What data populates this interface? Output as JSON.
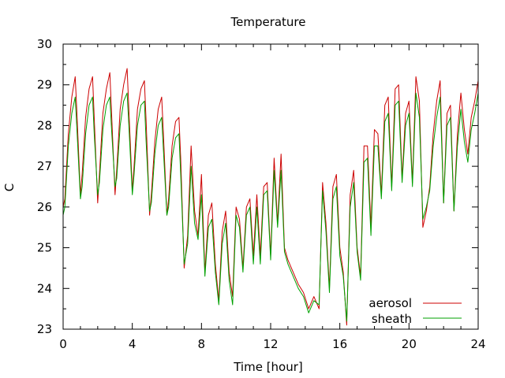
{
  "chart_data": {
    "type": "line",
    "title": "Temperature",
    "xlabel": "Time [hour]",
    "ylabel": "C",
    "xlim": [
      0,
      24
    ],
    "ylim": [
      23,
      30
    ],
    "xticks": [
      0,
      4,
      8,
      12,
      16,
      20,
      24
    ],
    "yticks": [
      23,
      24,
      25,
      26,
      27,
      28,
      29,
      30
    ],
    "xtick_labels": [
      "0",
      "4",
      "8",
      "12",
      "16",
      "20",
      "24"
    ],
    "ytick_labels": [
      "23",
      "24",
      "25",
      "26",
      "27",
      "28",
      "29",
      "30"
    ],
    "grid": false,
    "legend_position": "bottom-right",
    "series": [
      {
        "name": "aerosol",
        "color": "#cc0000",
        "x": [
          0,
          0.1,
          0.3,
          0.5,
          0.7,
          0.8,
          1.0,
          1.1,
          1.3,
          1.5,
          1.7,
          1.8,
          2.0,
          2.1,
          2.3,
          2.5,
          2.7,
          2.8,
          3.0,
          3.1,
          3.3,
          3.5,
          3.7,
          3.8,
          4.0,
          4.1,
          4.3,
          4.5,
          4.7,
          4.8,
          5.0,
          5.1,
          5.3,
          5.5,
          5.7,
          5.8,
          6.0,
          6.1,
          6.3,
          6.5,
          6.7,
          6.8,
          7.0,
          7.2,
          7.4,
          7.6,
          7.8,
          8.0,
          8.2,
          8.4,
          8.6,
          8.8,
          9.0,
          9.2,
          9.4,
          9.6,
          9.8,
          10.0,
          10.2,
          10.4,
          10.6,
          10.8,
          11.0,
          11.2,
          11.4,
          11.6,
          11.8,
          12.0,
          12.2,
          12.4,
          12.6,
          12.8,
          13.0,
          13.3,
          13.6,
          13.9,
          14.2,
          14.5,
          14.8,
          15.0,
          15.2,
          15.4,
          15.6,
          15.8,
          16.0,
          16.2,
          16.4,
          16.6,
          16.8,
          17.0,
          17.2,
          17.4,
          17.6,
          17.8,
          18.0,
          18.2,
          18.4,
          18.6,
          18.8,
          19.0,
          19.2,
          19.4,
          19.6,
          19.8,
          20.0,
          20.2,
          20.4,
          20.6,
          20.8,
          21.0,
          21.2,
          21.4,
          21.6,
          21.8,
          22.0,
          22.2,
          22.4,
          22.6,
          22.8,
          23.0,
          23.2,
          23.4,
          23.6,
          23.8,
          24.0
        ],
        "values": [
          26.0,
          26.2,
          27.8,
          28.7,
          29.2,
          28.3,
          26.3,
          26.8,
          28.2,
          28.9,
          29.2,
          28.2,
          26.1,
          26.8,
          28.3,
          28.9,
          29.3,
          28.3,
          26.3,
          26.9,
          28.4,
          29.0,
          29.4,
          28.4,
          26.4,
          27.0,
          28.4,
          28.9,
          29.1,
          28.1,
          25.8,
          26.3,
          27.6,
          28.4,
          28.7,
          27.8,
          25.8,
          26.2,
          27.5,
          28.1,
          28.2,
          27.2,
          24.5,
          25.3,
          27.5,
          25.9,
          25.3,
          26.8,
          24.4,
          25.8,
          26.1,
          24.6,
          23.7,
          25.4,
          25.9,
          24.4,
          23.8,
          26.0,
          25.7,
          24.5,
          26.0,
          26.2,
          24.8,
          26.3,
          24.8,
          26.5,
          26.6,
          24.8,
          27.2,
          25.6,
          27.3,
          25.0,
          24.7,
          24.4,
          24.1,
          23.9,
          23.5,
          23.8,
          23.5,
          26.6,
          25.6,
          24.0,
          26.5,
          26.8,
          25.0,
          24.4,
          23.1,
          26.3,
          26.9,
          25.0,
          24.3,
          27.5,
          27.5,
          25.5,
          27.9,
          27.8,
          26.3,
          28.5,
          28.7,
          26.5,
          28.9,
          29.0,
          26.7,
          28.3,
          28.6,
          26.6,
          29.2,
          28.6,
          25.5,
          25.9,
          26.5,
          27.8,
          28.6,
          29.1,
          26.1,
          28.3,
          28.5,
          25.9,
          27.8,
          28.8,
          27.9,
          27.3,
          28.2,
          28.6,
          29.1
        ]
      },
      {
        "name": "sheath",
        "color": "#00a000",
        "x": [
          0,
          0.1,
          0.3,
          0.5,
          0.7,
          0.8,
          1.0,
          1.1,
          1.3,
          1.5,
          1.7,
          1.8,
          2.0,
          2.1,
          2.3,
          2.5,
          2.7,
          2.8,
          3.0,
          3.1,
          3.3,
          3.5,
          3.7,
          3.8,
          4.0,
          4.1,
          4.3,
          4.5,
          4.7,
          4.8,
          5.0,
          5.1,
          5.3,
          5.5,
          5.7,
          5.8,
          6.0,
          6.1,
          6.3,
          6.5,
          6.7,
          6.8,
          7.0,
          7.2,
          7.4,
          7.6,
          7.8,
          8.0,
          8.2,
          8.4,
          8.6,
          8.8,
          9.0,
          9.2,
          9.4,
          9.6,
          9.8,
          10.0,
          10.2,
          10.4,
          10.6,
          10.8,
          11.0,
          11.2,
          11.4,
          11.6,
          11.8,
          12.0,
          12.2,
          12.4,
          12.6,
          12.8,
          13.0,
          13.3,
          13.6,
          13.9,
          14.2,
          14.5,
          14.8,
          15.0,
          15.2,
          15.4,
          15.6,
          15.8,
          16.0,
          16.2,
          16.4,
          16.6,
          16.8,
          17.0,
          17.2,
          17.4,
          17.6,
          17.8,
          18.0,
          18.2,
          18.4,
          18.6,
          18.8,
          19.0,
          19.2,
          19.4,
          19.6,
          19.8,
          20.0,
          20.2,
          20.4,
          20.6,
          20.8,
          21.0,
          21.2,
          21.4,
          21.6,
          21.8,
          22.0,
          22.2,
          22.4,
          22.6,
          22.8,
          23.0,
          23.2,
          23.4,
          23.6,
          23.8,
          24.0
        ],
        "values": [
          25.8,
          26.0,
          27.5,
          28.3,
          28.7,
          27.9,
          26.2,
          26.5,
          27.8,
          28.5,
          28.7,
          27.8,
          26.3,
          26.6,
          27.9,
          28.5,
          28.7,
          27.9,
          26.5,
          26.7,
          28.0,
          28.6,
          28.8,
          28.0,
          26.3,
          26.8,
          28.0,
          28.5,
          28.6,
          27.6,
          25.9,
          26.1,
          27.3,
          28.0,
          28.2,
          27.4,
          25.8,
          26.0,
          27.2,
          27.7,
          27.8,
          26.8,
          24.6,
          25.1,
          27.0,
          25.6,
          25.2,
          26.3,
          24.3,
          25.5,
          25.7,
          24.4,
          23.6,
          25.1,
          25.6,
          24.2,
          23.6,
          25.8,
          25.5,
          24.4,
          25.8,
          26.0,
          24.6,
          26.0,
          24.6,
          26.3,
          26.4,
          24.7,
          26.9,
          25.5,
          26.9,
          24.9,
          24.6,
          24.3,
          24.0,
          23.8,
          23.4,
          23.7,
          23.6,
          26.4,
          25.4,
          23.9,
          26.2,
          26.5,
          24.8,
          24.3,
          23.2,
          26.0,
          26.6,
          24.9,
          24.2,
          27.1,
          27.2,
          25.3,
          27.5,
          27.5,
          26.2,
          28.1,
          28.3,
          26.4,
          28.5,
          28.6,
          26.6,
          28.0,
          28.3,
          26.5,
          28.8,
          28.2,
          25.7,
          26.0,
          26.4,
          27.5,
          28.2,
          28.7,
          26.1,
          28.0,
          28.2,
          25.9,
          27.5,
          28.4,
          27.6,
          27.1,
          27.9,
          28.3,
          28.8
        ]
      }
    ]
  }
}
